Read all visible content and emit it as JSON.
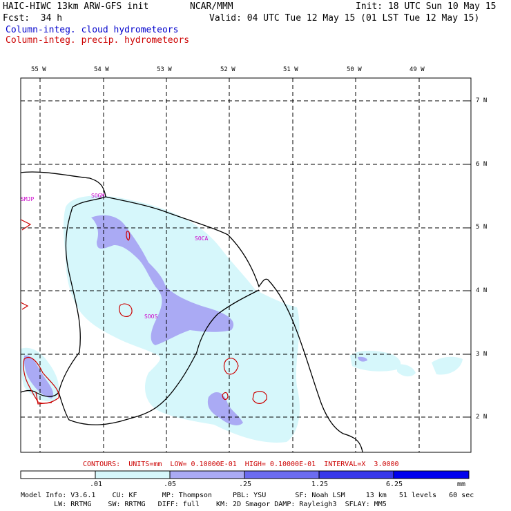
{
  "header": {
    "model": "HAIC-HIWC 13km ARW-GFS init",
    "org": "NCAR/MMM",
    "init": "Init: 18 UTC Sun 10 May 15",
    "fcst": "Fcst:  34 h",
    "valid": "Valid: 04 UTC Tue 12 May 15 (01 LST Tue 12 May 15)",
    "field_cloud": "Column-integ. cloud hydrometeors",
    "field_precip": "Column-integ. precip. hydrometeors"
  },
  "axes": {
    "lon_labels": [
      "55 W",
      "54 W",
      "53 W",
      "52 W",
      "51 W",
      "50 W",
      "49 W"
    ],
    "lat_labels": [
      "7 N",
      "6 N",
      "5 N",
      "4 N",
      "3 N",
      "2 N"
    ]
  },
  "stations": [
    "SMJP",
    "SOGM",
    "SOCA",
    "SOOS"
  ],
  "contours_line": "CONTOURS:  UNITS=mm  LOW= 0.10000E-01  HIGH= 0.10000E-01  INTERVAL=X  3.0000",
  "colorbar": {
    "ticks": [
      ".01",
      ".05",
      ".25",
      "1.25",
      "6.25"
    ],
    "unit": "mm",
    "colors": [
      "#ffffff",
      "#d6f7fb",
      "#aaaaf4",
      "#6b6bf0",
      "#3838ea",
      "#0000ee"
    ]
  },
  "footer": {
    "line1": "Model Info: V3.6.1    CU: KF      MP: Thompson     PBL: YSU       SF: Noah LSM     13 km   51 levels   60 sec",
    "line2": "        LW: RRTMG    SW: RRTMG   DIFF: full    KM: 2D Smagor DAMP: Rayleigh3  SFLAY: MM5"
  },
  "colors": {
    "cloud_light": "#d6f7fb",
    "cloud_mid": "#aaaaf4",
    "precip_contour": "#cc0000",
    "station_label": "#cc00cc"
  }
}
